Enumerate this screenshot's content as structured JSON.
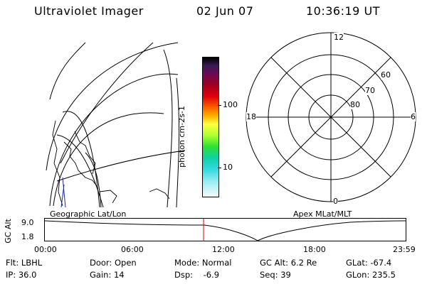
{
  "header": {
    "instrument": "Ultraviolet Imager",
    "date": "02 Jun 07",
    "time": "10:36:19 UT"
  },
  "colorbar": {
    "unit_label": "photon cm-2s-1",
    "ticks": [
      "100",
      "10"
    ],
    "colors": [
      "#000000",
      "#2a1a3a",
      "#4b1150",
      "#7a0a30",
      "#b00010",
      "#e00010",
      "#ff3000",
      "#ff8c00",
      "#ffc800",
      "#ffff40",
      "#d8ff40",
      "#90ff30",
      "#30e040",
      "#10d0a0",
      "#20d0d0",
      "#70e0e8",
      "#b0f0f4",
      "#e8fafc"
    ]
  },
  "geo_map": {
    "caption": "Geographic Lat/Lon"
  },
  "polar_plot": {
    "caption": "Apex MLat/MLT",
    "mlt_labels": {
      "top": "12",
      "left": "18",
      "right": "6",
      "bottom": "0"
    },
    "lat_labels": [
      "60",
      "70",
      "80"
    ]
  },
  "altitude_plot": {
    "ylabel": "GC Alt",
    "yticks": [
      "9.0",
      "1.8"
    ],
    "xticks": [
      "00:00",
      "06:00",
      "12:00",
      "18:00",
      "23:59"
    ],
    "marker_color": "#dd0000"
  },
  "status": {
    "flt_label": "Flt: LBHL",
    "ip_label": "IP: 36.0",
    "door_label": "Door: Open",
    "gain_label": "Gain: 14",
    "mode_label": "Mode: Normal",
    "dsp_label": "Dsp:    -6.9",
    "gcalt_label": "GC Alt: 6.2 Re",
    "seq_label": "Seq: 39",
    "glat_label": "GLat: -67.4",
    "glon_label": "GLon: 235.5"
  }
}
